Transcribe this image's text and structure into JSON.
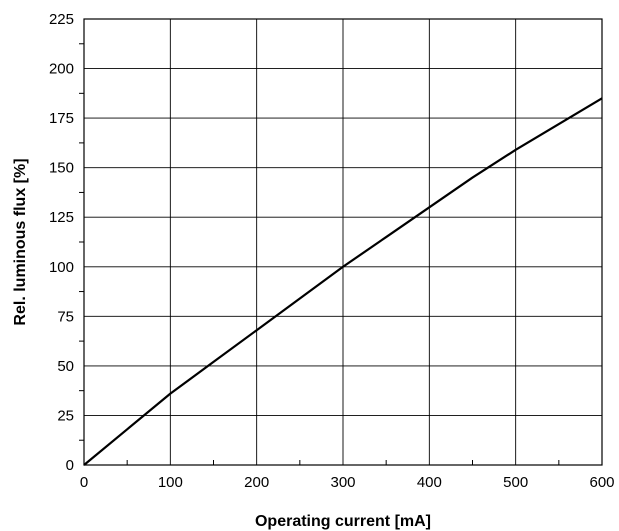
{
  "chart_data": {
    "type": "line",
    "title": "",
    "xlabel": "Operating current [mA]",
    "ylabel": "Rel. luminous flux [%]",
    "xlim": [
      0,
      600
    ],
    "ylim": [
      0,
      225
    ],
    "x_ticks": [
      0,
      100,
      200,
      300,
      400,
      500,
      600
    ],
    "y_ticks": [
      0,
      25,
      50,
      75,
      100,
      125,
      150,
      175,
      200,
      225
    ],
    "grid": true,
    "legend": "none",
    "line_color": "#000000",
    "series": [
      {
        "x": [
          0,
          50,
          100,
          150,
          200,
          250,
          300,
          350,
          400,
          450,
          500,
          550,
          600
        ],
        "y": [
          0,
          18,
          36,
          52,
          68,
          84,
          100,
          115,
          130,
          145,
          159,
          172,
          185
        ]
      }
    ]
  }
}
